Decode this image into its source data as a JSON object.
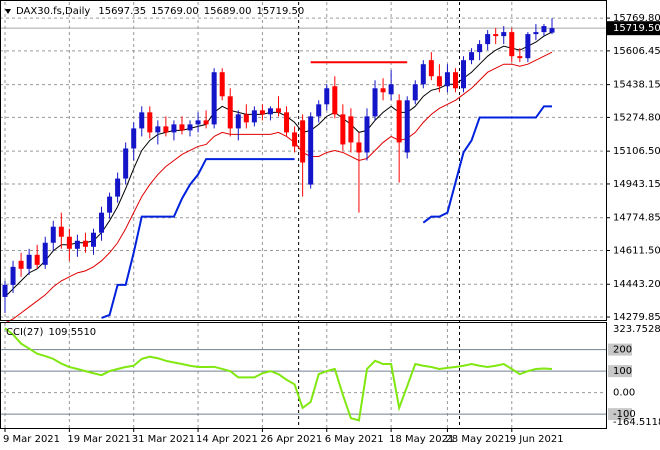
{
  "chart_data": [
    {
      "type": "candlestick",
      "title": "DAX30.fs,Daily",
      "categories": [
        "9 Mar 2021",
        null,
        null,
        null,
        null,
        null,
        null,
        null,
        "19 Mar 2021",
        null,
        null,
        null,
        null,
        null,
        null,
        null,
        "31 Mar 2021",
        null,
        null,
        null,
        null,
        null,
        null,
        null,
        "14 Apr 2021",
        null,
        null,
        null,
        null,
        null,
        null,
        null,
        "26 Apr 2021",
        null,
        null,
        null,
        null,
        null,
        null,
        null,
        "6 May 2021",
        null,
        null,
        null,
        null,
        null,
        null,
        null,
        "18 May 2021",
        null,
        null,
        null,
        null,
        null,
        null,
        "28 May 2021",
        null,
        null,
        null,
        null,
        null,
        null,
        null,
        "9 Jun 2021",
        null,
        null,
        null,
        null,
        null
      ],
      "open": [
        14380,
        14440,
        14560,
        14520,
        14590,
        14540,
        14650,
        14730,
        14680,
        14620,
        14660,
        14630,
        14700,
        14800,
        14880,
        14970,
        15120,
        15220,
        15300,
        15200,
        15230,
        15200,
        15240,
        15210,
        15240,
        15260,
        15240,
        15500,
        15380,
        15220,
        15290,
        15250,
        15310,
        15290,
        15320,
        15300,
        15200,
        15260,
        14940,
        15280,
        15340,
        15430,
        15290,
        15280,
        15150,
        15100,
        15280,
        15420,
        15390,
        15360,
        15100,
        15360,
        15440,
        15560,
        15480,
        15430,
        15500,
        15420,
        15560,
        15600,
        15640,
        15690,
        15680,
        15700,
        15580,
        15570,
        15690,
        15700,
        15697.35
      ],
      "high": [
        14460,
        14560,
        14600,
        14620,
        14640,
        14680,
        14760,
        14800,
        14720,
        14690,
        14700,
        14720,
        14830,
        14900,
        15000,
        15150,
        15250,
        15330,
        15330,
        15260,
        15280,
        15260,
        15280,
        15260,
        15300,
        15310,
        15520,
        15520,
        15420,
        15310,
        15340,
        15330,
        15340,
        15330,
        15380,
        15330,
        15230,
        15290,
        15300,
        15360,
        15440,
        15480,
        15340,
        15320,
        15200,
        15320,
        15460,
        15470,
        15510,
        15390,
        15380,
        15460,
        15560,
        15600,
        15540,
        15540,
        15520,
        15580,
        15620,
        15660,
        15710,
        15720,
        15730,
        15720,
        15620,
        15700,
        15740,
        15740,
        15769
      ],
      "low": [
        14300,
        14400,
        14480,
        14490,
        14520,
        14520,
        14610,
        14620,
        14560,
        14580,
        14600,
        14590,
        14660,
        14770,
        14850,
        14940,
        15060,
        15180,
        15170,
        15140,
        15180,
        15160,
        15190,
        15180,
        15200,
        15220,
        15220,
        15360,
        15180,
        15160,
        15220,
        15230,
        15260,
        15260,
        15280,
        15180,
        15100,
        14880,
        14920,
        15250,
        15310,
        15270,
        15110,
        15100,
        14800,
        15060,
        15260,
        15360,
        15360,
        14950,
        15070,
        15340,
        15420,
        15460,
        15400,
        15400,
        15400,
        15400,
        15540,
        15560,
        15610,
        15640,
        15640,
        15550,
        15550,
        15550,
        15660,
        15680,
        15689
      ],
      "close": [
        14440,
        14530,
        14520,
        14590,
        14540,
        14650,
        14730,
        14680,
        14620,
        14660,
        14630,
        14700,
        14800,
        14880,
        14970,
        15120,
        15220,
        15300,
        15200,
        15230,
        15200,
        15240,
        15210,
        15240,
        15260,
        15240,
        15500,
        15380,
        15220,
        15290,
        15250,
        15310,
        15290,
        15320,
        15300,
        15200,
        15130,
        15050,
        15280,
        15340,
        15420,
        15290,
        15140,
        15150,
        15100,
        15280,
        15420,
        15400,
        15440,
        15150,
        15360,
        15440,
        15540,
        15480,
        15430,
        15500,
        15420,
        15560,
        15600,
        15640,
        15690,
        15680,
        15700,
        15580,
        15570,
        15690,
        15700,
        15730,
        15719.5
      ],
      "last_labels": [
        "15697.35",
        "15769.00",
        "15689.00",
        "15719.50"
      ],
      "up_color": "#1414c8",
      "down_color": "#ff0000",
      "price_line_color": "#a8a8a8",
      "series": [
        {
          "color": "#000000",
          "values": [
            14380,
            14420,
            14460,
            14500,
            14520,
            14560,
            14610,
            14640,
            14640,
            14650,
            14650,
            14660,
            14700,
            14760,
            14830,
            14920,
            15020,
            15110,
            15160,
            15190,
            15200,
            15210,
            15210,
            15220,
            15230,
            15240,
            15300,
            15330,
            15310,
            15300,
            15290,
            15290,
            15290,
            15300,
            15300,
            15280,
            15250,
            15200,
            15210,
            15240,
            15280,
            15300,
            15270,
            15240,
            15200,
            15210,
            15260,
            15300,
            15330,
            15300,
            15300,
            15330,
            15380,
            15410,
            15420,
            15440,
            15440,
            15470,
            15500,
            15540,
            15580,
            15610,
            15630,
            15620,
            15610,
            15630,
            15650,
            15680,
            15700
          ]
        },
        {
          "color": "#e00000",
          "values": [
            14250,
            14270,
            14300,
            14330,
            14360,
            14390,
            14430,
            14460,
            14480,
            14500,
            14510,
            14530,
            14560,
            14600,
            14650,
            14720,
            14800,
            14880,
            14940,
            14990,
            15030,
            15060,
            15090,
            15110,
            15130,
            15140,
            15180,
            15200,
            15190,
            15190,
            15190,
            15190,
            15190,
            15190,
            15200,
            15180,
            15150,
            15100,
            15080,
            15080,
            15100,
            15110,
            15100,
            15080,
            15060,
            15070,
            15110,
            15150,
            15180,
            15160,
            15170,
            15200,
            15250,
            15290,
            15320,
            15340,
            15360,
            15390,
            15420,
            15460,
            15500,
            15520,
            15540,
            15540,
            15530,
            15540,
            15560,
            15580,
            15600
          ]
        },
        {
          "color": "#0022dd",
          "width": 2,
          "values": [
            null,
            null,
            null,
            null,
            null,
            null,
            null,
            null,
            null,
            null,
            null,
            null,
            14275,
            14290,
            14440,
            14440,
            14600,
            14780,
            14780,
            14780,
            14780,
            14780,
            14870,
            14940,
            14990,
            15067,
            15067,
            15067,
            15067,
            15067,
            15067,
            15067,
            15067,
            15067,
            15067,
            15067,
            15067,
            null,
            null,
            null,
            null,
            null,
            null,
            null,
            null,
            null,
            null,
            null,
            null,
            null,
            null,
            null,
            14750,
            14780,
            14780,
            14800,
            14950,
            15100,
            15160,
            15274,
            15274,
            15274,
            15274,
            15274,
            15274,
            15274,
            15274,
            15330,
            15330
          ]
        },
        {
          "color": "#ff0000",
          "width": 2,
          "values": [
            null,
            null,
            null,
            null,
            null,
            null,
            null,
            null,
            null,
            null,
            null,
            null,
            null,
            null,
            null,
            null,
            null,
            null,
            null,
            null,
            null,
            null,
            null,
            null,
            null,
            null,
            null,
            null,
            null,
            null,
            null,
            null,
            null,
            null,
            null,
            null,
            null,
            null,
            15550,
            15550,
            15550,
            15550,
            15550,
            15550,
            15550,
            15550,
            15550,
            15550,
            15550,
            15550,
            15550,
            null,
            null,
            null,
            null,
            null,
            null,
            null,
            null,
            null,
            null,
            null,
            null,
            null,
            null,
            null,
            null,
            null,
            null
          ]
        }
      ],
      "ylim": [
        14265,
        15850
      ],
      "yticks": [
        {
          "value": 15769.8,
          "label": "15769.80"
        },
        15606.45,
        15438.15,
        {
          "value": 15274.8,
          "label": "15274.80"
        },
        {
          "value": 15106.5,
          "label": "15106.50"
        },
        14943.15,
        14774.85,
        {
          "value": 14611.5,
          "label": "14611.50"
        },
        {
          "value": 14443.2,
          "label": "14443.20"
        },
        14279.85
      ],
      "grid": true
    },
    {
      "type": "line",
      "series": [
        {
          "name": "CCI(27)",
          "color": "#80e810",
          "last_label": "109.5510",
          "values": [
            300,
            270,
            228,
            205,
            181,
            170,
            157,
            135,
            119,
            110,
            100,
            90,
            81,
            100,
            110,
            119,
            125,
            157,
            167,
            160,
            148,
            140,
            133,
            125,
            119,
            119,
            120,
            110,
            100,
            71,
            71,
            71,
            90,
            100,
            86,
            60,
            38,
            -71,
            -43,
            86,
            100,
            110,
            -10,
            -119,
            -129,
            110,
            148,
            133,
            133,
            -71,
            30,
            133,
            125,
            119,
            110,
            115,
            119,
            125,
            133,
            125,
            119,
            125,
            133,
            110,
            86,
            100,
            110,
            112,
            109.551
          ]
        }
      ],
      "ylim": [
        -164.5118,
        323.7528
      ],
      "yticks": [
        323.7528,
        200,
        100,
        {
          "value": 0,
          "label": "0.00"
        },
        -100,
        -164.5118
      ],
      "levels": [
        200,
        100,
        -100
      ],
      "grid": true
    }
  ]
}
